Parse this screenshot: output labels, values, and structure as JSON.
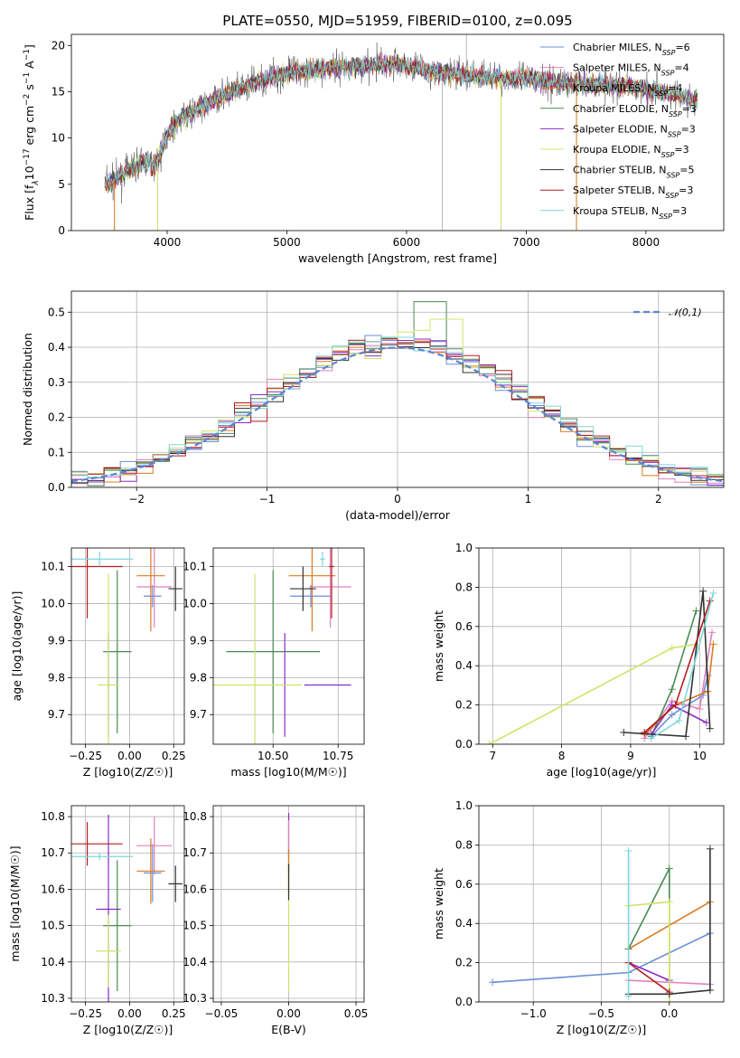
{
  "figure_title": "PLATE=0550, MJD=51959, FIBERID=0100, z=0.095",
  "colors": {
    "Chabrier MILES": "#6a8fd6",
    "Salpeter MILES": "#e17fbf",
    "Kroupa MILES": "#d97a21",
    "Chabrier ELODIE": "#4a8a55",
    "Salpeter ELODIE": "#8c2cc2",
    "Kroupa ELODIE": "#cfe36b",
    "Chabrier STELIB": "#333333",
    "Salpeter STELIB": "#b21e1e",
    "Kroupa STELIB": "#7ed6dc"
  },
  "chart_data": [
    {
      "id": "spectrum",
      "type": "line",
      "title": "PLATE=0550, MJD=51959, FIBERID=0100, z=0.095",
      "xlabel": "wavelength [Angstrom, rest frame]",
      "ylabel_parts": [
        "Flux [f",
        "λ",
        "10",
        "−17",
        " erg cm",
        "−2",
        " s",
        "−1",
        " A",
        "−1",
        "]"
      ],
      "xlim": [
        3200,
        8650
      ],
      "ylim": [
        0,
        21.2
      ],
      "xticks": [
        4000,
        5000,
        6000,
        7000,
        8000
      ],
      "yticks": [
        0,
        5,
        10,
        15,
        20
      ],
      "legend_position": "upper right",
      "legend": [
        {
          "name": "Chabrier MILES",
          "n": "6"
        },
        {
          "name": "Salpeter MILES",
          "n": "4"
        },
        {
          "name": "Kroupa MILES",
          "n": "4"
        },
        {
          "name": "Chabrier ELODIE",
          "n": "3"
        },
        {
          "name": "Salpeter ELODIE",
          "n": "3"
        },
        {
          "name": "Kroupa ELODIE",
          "n": "3"
        },
        {
          "name": "Chabrier STELIB",
          "n": "5"
        },
        {
          "name": "Salpeter STELIB",
          "n": "3"
        },
        {
          "name": "Kroupa STELIB",
          "n": "3"
        }
      ],
      "legend_suffix": "SSP",
      "continuum": [
        [
          3480,
          5.0
        ],
        [
          3600,
          5.8
        ],
        [
          3800,
          7.5
        ],
        [
          3900,
          7.0
        ],
        [
          3950,
          8.5
        ],
        [
          4000,
          10.5
        ],
        [
          4100,
          12.0
        ],
        [
          4300,
          13.5
        ],
        [
          4500,
          14.8
        ],
        [
          4700,
          15.8
        ],
        [
          4900,
          16.8
        ],
        [
          5100,
          17.2
        ],
        [
          5300,
          17.5
        ],
        [
          5600,
          17.8
        ],
        [
          5900,
          18.0
        ],
        [
          6100,
          17.5
        ],
        [
          6300,
          17.0
        ],
        [
          6500,
          16.8
        ],
        [
          6800,
          16.5
        ],
        [
          7000,
          16.5
        ],
        [
          7300,
          16.0
        ],
        [
          7600,
          15.8
        ],
        [
          7900,
          15.5
        ],
        [
          8100,
          15.0
        ],
        [
          8300,
          14.5
        ],
        [
          8430,
          14.0
        ]
      ],
      "spikes": [
        [
          6500,
          21.2
        ],
        [
          6300,
          0.0
        ],
        [
          3920,
          0.0
        ],
        [
          7420,
          0.0
        ],
        [
          6790,
          0.0
        ],
        [
          3560,
          0.0
        ]
      ]
    },
    {
      "id": "residuals",
      "type": "histogram",
      "xlabel": "(data-model)/error",
      "ylabel": "Normed distribution",
      "xlim": [
        -2.5,
        2.5
      ],
      "ylim": [
        0,
        0.56
      ],
      "xticks": [
        -2,
        -1,
        0,
        1,
        2
      ],
      "yticks": [
        0.0,
        0.1,
        0.2,
        0.3,
        0.4,
        0.5
      ],
      "bin_width": 0.125,
      "legend": "𝒩(0,1)",
      "legend_position": "upper right",
      "reference_curve": "normal(0,1)"
    },
    {
      "id": "age_vs_Z",
      "type": "scatter",
      "xlabel": "Z [log10(Z/Z☉)]",
      "ylabel": "age [log10(age/yr)]",
      "xlim": [
        -0.33,
        0.31
      ],
      "ylim": [
        9.62,
        10.15
      ],
      "xticks": [
        -0.25,
        0.0,
        0.25
      ],
      "yticks": [
        9.7,
        9.8,
        9.9,
        10.0,
        10.1
      ],
      "points": [
        {
          "series": "Chabrier MILES",
          "x": 0.13,
          "xerr": 0.05,
          "y": 10.02,
          "yerr": 0.03
        },
        {
          "series": "Salpeter MILES",
          "x": 0.14,
          "xerr": 0.1,
          "y": 10.045,
          "yerr": 0.11
        },
        {
          "series": "Kroupa MILES",
          "x": 0.12,
          "xerr": 0.08,
          "y": 10.075,
          "yerr": 0.15
        },
        {
          "series": "Chabrier ELODIE",
          "x": -0.07,
          "xerr": 0.08,
          "y": 9.87,
          "yerr": 0.22
        },
        {
          "series": "Salpeter ELODIE",
          "x": -0.12,
          "xerr": 0.005,
          "y": 9.78,
          "yerr": 0.14
        },
        {
          "series": "Kroupa ELODIE",
          "x": -0.12,
          "xerr": 0.06,
          "y": 9.78,
          "yerr": 0.3
        },
        {
          "series": "Chabrier STELIB",
          "x": 0.26,
          "xerr": 0.04,
          "y": 10.04,
          "yerr": 0.06
        },
        {
          "series": "Salpeter STELIB",
          "x": -0.24,
          "xerr": 0.2,
          "y": 10.1,
          "yerr": 0.14
        },
        {
          "series": "Kroupa STELIB",
          "x": -0.17,
          "xerr": 0.19,
          "y": 10.12,
          "yerr": 0.02
        }
      ]
    },
    {
      "id": "age_vs_mass",
      "type": "scatter",
      "xlabel": "mass [log10(M/M☉)]",
      "ylabel": "",
      "xlim": [
        10.27,
        10.85
      ],
      "ylim": [
        9.62,
        10.15
      ],
      "xticks": [
        10.5,
        10.75
      ],
      "yticks": [
        9.7,
        9.8,
        9.9,
        10.0,
        10.1
      ],
      "points": [
        {
          "series": "Chabrier MILES",
          "x": 10.645,
          "xerr": 0.08,
          "y": 10.02,
          "yerr": 0.03
        },
        {
          "series": "Salpeter MILES",
          "x": 10.72,
          "xerr": 0.08,
          "y": 10.045,
          "yerr": 0.11
        },
        {
          "series": "Kroupa MILES",
          "x": 10.65,
          "xerr": 0.09,
          "y": 10.075,
          "yerr": 0.15
        },
        {
          "series": "Chabrier ELODIE",
          "x": 10.5,
          "xerr": 0.18,
          "y": 9.87,
          "yerr": 0.22
        },
        {
          "series": "Salpeter ELODIE",
          "x": 10.545,
          "xerr": 0.005,
          "y": 9.78,
          "yerr": 0.14
        },
        {
          "series": "Kroupa ELODIE",
          "x": 10.43,
          "xerr": 0.18,
          "y": 9.78,
          "yerr": 0.3
        },
        {
          "series": "Chabrier STELIB",
          "x": 10.615,
          "xerr": 0.05,
          "y": 10.04,
          "yerr": 0.06
        },
        {
          "series": "Salpeter STELIB",
          "x": 10.725,
          "xerr": 0.01,
          "y": 10.1,
          "yerr": 0.14
        },
        {
          "series": "Kroupa STELIB",
          "x": 10.69,
          "xerr": 0.01,
          "y": 10.12,
          "yerr": 0.02
        }
      ],
      "extra_segments": [
        {
          "series": "Salpeter ELODIE",
          "x1": 10.62,
          "y1": 9.78,
          "x2": 10.8,
          "y2": 9.78
        }
      ]
    },
    {
      "id": "massweight_vs_age",
      "type": "line",
      "xlabel": "age [log10(age/yr)]",
      "ylabel": "mass weight",
      "xlim": [
        6.8,
        10.35
      ],
      "ylim": [
        0,
        1
      ],
      "xticks": [
        7,
        8,
        9,
        10
      ],
      "yticks": [
        0.0,
        0.2,
        0.4,
        0.6,
        0.8,
        1.0
      ],
      "series": [
        {
          "name": "Chabrier MILES",
          "x": [
            9.3,
            9.6,
            10.05,
            10.12
          ],
          "y": [
            0.04,
            0.15,
            0.25,
            0.35
          ]
        },
        {
          "name": "Salpeter MILES",
          "x": [
            9.2,
            9.6,
            10.0,
            10.18
          ],
          "y": [
            0.03,
            0.22,
            0.18,
            0.57
          ]
        },
        {
          "name": "Kroupa MILES",
          "x": [
            9.2,
            9.65,
            10.12,
            10.2
          ],
          "y": [
            0.05,
            0.2,
            0.27,
            0.51
          ]
        },
        {
          "name": "Chabrier ELODIE",
          "x": [
            9.3,
            9.6,
            9.95
          ],
          "y": [
            0.04,
            0.28,
            0.68
          ]
        },
        {
          "name": "Salpeter ELODIE",
          "x": [
            9.3,
            9.6,
            10.1
          ],
          "y": [
            0.05,
            0.2,
            0.11
          ]
        },
        {
          "name": "Kroupa ELODIE",
          "x": [
            6.95,
            9.6,
            9.95
          ],
          "y": [
            0.0,
            0.49,
            0.51
          ]
        },
        {
          "name": "Chabrier STELIB",
          "x": [
            8.9,
            9.8,
            10.05,
            10.15
          ],
          "y": [
            0.06,
            0.04,
            0.78,
            0.08
          ]
        },
        {
          "name": "Salpeter STELIB",
          "x": [
            9.2,
            9.65,
            10.15
          ],
          "y": [
            0.06,
            0.2,
            0.73
          ]
        },
        {
          "name": "Kroupa STELIB",
          "x": [
            9.3,
            9.7,
            10.2
          ],
          "y": [
            0.03,
            0.12,
            0.77
          ]
        }
      ]
    },
    {
      "id": "mass_vs_Z",
      "type": "scatter",
      "xlabel": "Z [log10(Z/Z☉)]",
      "ylabel": "mass [log10(M/M☉)]",
      "xlim": [
        -0.33,
        0.31
      ],
      "ylim": [
        10.29,
        10.83
      ],
      "xticks": [
        -0.25,
        0.0,
        0.25
      ],
      "yticks": [
        10.3,
        10.4,
        10.5,
        10.6,
        10.7,
        10.8
      ],
      "points": [
        {
          "series": "Chabrier MILES",
          "x": 0.13,
          "xerr": 0.05,
          "y": 10.645,
          "yerr": 0.08
        },
        {
          "series": "Salpeter MILES",
          "x": 0.14,
          "xerr": 0.1,
          "y": 10.72,
          "yerr": 0.08
        },
        {
          "series": "Kroupa MILES",
          "x": 0.12,
          "xerr": 0.08,
          "y": 10.65,
          "yerr": 0.09
        },
        {
          "series": "Chabrier ELODIE",
          "x": -0.07,
          "xerr": 0.08,
          "y": 10.5,
          "yerr": 0.18
        },
        {
          "series": "Salpeter ELODIE",
          "x": -0.12,
          "xerr": 0.07,
          "y": 10.545,
          "yerr": 0.26
        },
        {
          "series": "Kroupa ELODIE",
          "x": -0.12,
          "xerr": 0.07,
          "y": 10.43,
          "yerr": 0.1
        },
        {
          "series": "Chabrier STELIB",
          "x": 0.26,
          "xerr": 0.04,
          "y": 10.615,
          "yerr": 0.05
        },
        {
          "series": "Salpeter STELIB",
          "x": -0.24,
          "xerr": 0.2,
          "y": 10.725,
          "yerr": 0.06
        },
        {
          "series": "Kroupa STELIB",
          "x": -0.17,
          "xerr": 0.19,
          "y": 10.69,
          "yerr": 0.01
        }
      ]
    },
    {
      "id": "mass_vs_ebv",
      "type": "scatter",
      "xlabel": "E(B-V)",
      "ylabel": "",
      "xlim": [
        -0.056,
        0.056
      ],
      "ylim": [
        10.29,
        10.83
      ],
      "xticks": [
        -0.05,
        0.0,
        0.05
      ],
      "yticks": [
        10.3,
        10.4,
        10.5,
        10.6,
        10.7,
        10.8
      ],
      "points": [
        {
          "series": "Kroupa ELODIE",
          "x": 0.0,
          "xerr": 0.0,
          "y": 10.55,
          "yerr": 0.23
        },
        {
          "series": "Salpeter ELODIE",
          "x": 0.0,
          "xerr": 0.0,
          "y": 10.75,
          "yerr": 0.06
        },
        {
          "series": "Salpeter MILES",
          "x": 0.0,
          "xerr": 0.0,
          "y": 10.72,
          "yerr": 0.07
        },
        {
          "series": "Kroupa MILES",
          "x": 0.0,
          "xerr": 0.0,
          "y": 10.65,
          "yerr": 0.06
        },
        {
          "series": "Chabrier STELIB",
          "x": 0.0,
          "xerr": 0.0,
          "y": 10.62,
          "yerr": 0.05
        }
      ]
    },
    {
      "id": "massweight_vs_Z",
      "type": "line",
      "xlabel": "Z [log10(Z/Z☉)]",
      "ylabel": "mass weight",
      "xlim": [
        -1.4,
        0.4
      ],
      "ylim": [
        0,
        1
      ],
      "xticks": [
        -1.0,
        -0.5,
        0.0
      ],
      "yticks": [
        0.0,
        0.2,
        0.4,
        0.6,
        0.8,
        1.0
      ],
      "series": [
        {
          "name": "Chabrier MILES",
          "x": [
            -1.3,
            -0.3,
            0.3
          ],
          "y": [
            0.1,
            0.15,
            0.35
          ]
        },
        {
          "name": "Salpeter MILES",
          "x": [
            -0.3,
            0.3
          ],
          "y": [
            0.11,
            0.09
          ]
        },
        {
          "name": "Kroupa MILES",
          "x": [
            -0.3,
            0.3
          ],
          "y": [
            0.27,
            0.51
          ]
        },
        {
          "name": "Chabrier ELODIE",
          "x": [
            -0.3,
            0.0,
            0.0
          ],
          "y": [
            0.27,
            0.68,
            0.04
          ]
        },
        {
          "name": "Salpeter ELODIE",
          "x": [
            -0.3,
            0.0
          ],
          "y": [
            0.2,
            0.11
          ]
        },
        {
          "name": "Kroupa ELODIE",
          "x": [
            -0.3,
            0.0,
            0.0
          ],
          "y": [
            0.49,
            0.51,
            0.0
          ]
        },
        {
          "name": "Chabrier STELIB",
          "x": [
            -0.3,
            0.0,
            0.3,
            0.3
          ],
          "y": [
            0.04,
            0.04,
            0.06,
            0.78
          ]
        },
        {
          "name": "Salpeter STELIB",
          "x": [
            -0.3,
            0.0
          ],
          "y": [
            0.2,
            0.05
          ]
        },
        {
          "name": "Kroupa STELIB",
          "x": [
            -0.3,
            -0.3
          ],
          "y": [
            0.03,
            0.77
          ]
        }
      ]
    }
  ]
}
